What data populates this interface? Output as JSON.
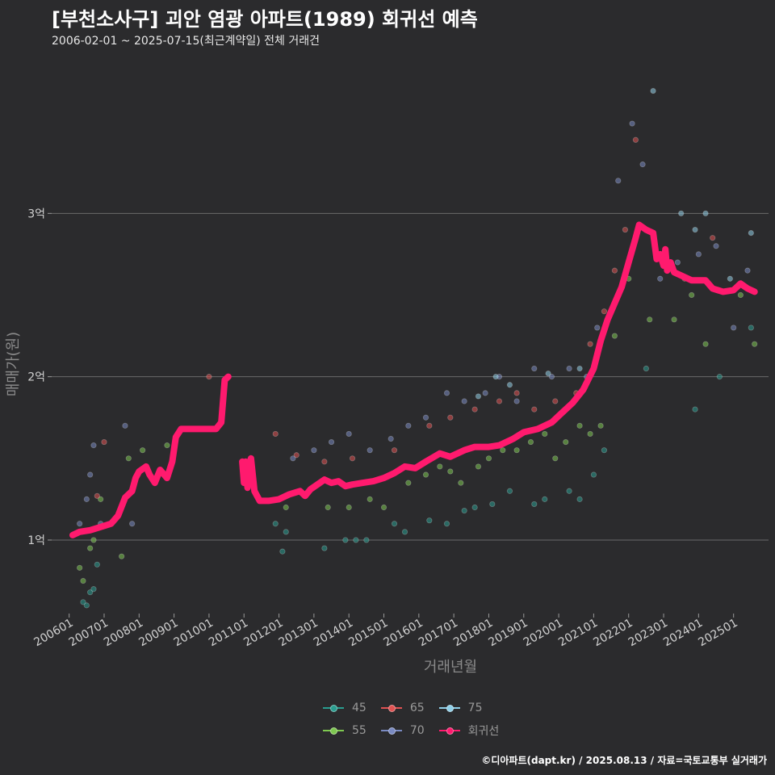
{
  "chart_data": {
    "type": "scatter",
    "title": "[부천소사구] 괴안 염광 아파트(1989) 회귀선 예측",
    "subtitle": "2006-02-01 ~ 2025-07-15(최근계약일) 전체 거래건",
    "xlabel": "거래년월",
    "ylabel": "매매가(원)",
    "x_ticks": [
      "200601",
      "200701",
      "200801",
      "200901",
      "201001",
      "201101",
      "201201",
      "201301",
      "201401",
      "201501",
      "201601",
      "201701",
      "201801",
      "201901",
      "202001",
      "202101",
      "202201",
      "202301",
      "202401",
      "202501"
    ],
    "x_range": [
      2005.5,
      2026.0
    ],
    "y_ticks": [
      {
        "value": 1,
        "label": "1억"
      },
      {
        "value": 2,
        "label": "2억"
      },
      {
        "value": 3,
        "label": "3억"
      }
    ],
    "y_range": [
      0.55,
      4.0
    ],
    "grid": true,
    "legend": "bottom-center",
    "series": [
      {
        "name": "45",
        "color": "#2a9d8f",
        "points": [
          [
            2006.4,
            0.62
          ],
          [
            2006.5,
            0.6
          ],
          [
            2006.6,
            0.68
          ],
          [
            2006.7,
            0.7
          ],
          [
            2006.8,
            0.85
          ],
          [
            2011.9,
            1.1
          ],
          [
            2012.1,
            0.93
          ],
          [
            2012.2,
            1.05
          ],
          [
            2013.3,
            0.95
          ],
          [
            2013.9,
            1.0
          ],
          [
            2014.2,
            1.0
          ],
          [
            2014.5,
            1.0
          ],
          [
            2015.3,
            1.1
          ],
          [
            2015.6,
            1.05
          ],
          [
            2016.3,
            1.12
          ],
          [
            2016.8,
            1.1
          ],
          [
            2017.3,
            1.18
          ],
          [
            2017.6,
            1.2
          ],
          [
            2018.1,
            1.22
          ],
          [
            2018.6,
            1.3
          ],
          [
            2019.3,
            1.22
          ],
          [
            2019.6,
            1.25
          ],
          [
            2020.3,
            1.3
          ],
          [
            2020.6,
            1.25
          ],
          [
            2021.0,
            1.4
          ],
          [
            2021.3,
            1.55
          ],
          [
            2022.5,
            2.05
          ],
          [
            2023.9,
            1.8
          ],
          [
            2024.6,
            2.0
          ],
          [
            2025.5,
            2.3
          ]
        ]
      },
      {
        "name": "55",
        "color": "#7ec850",
        "points": [
          [
            2006.3,
            0.83
          ],
          [
            2006.4,
            0.75
          ],
          [
            2006.6,
            0.95
          ],
          [
            2006.7,
            1.0
          ],
          [
            2006.9,
            1.25
          ],
          [
            2007.5,
            0.9
          ],
          [
            2007.7,
            1.5
          ],
          [
            2008.1,
            1.55
          ],
          [
            2008.8,
            1.58
          ],
          [
            2012.2,
            1.2
          ],
          [
            2013.4,
            1.2
          ],
          [
            2014.0,
            1.2
          ],
          [
            2014.6,
            1.25
          ],
          [
            2015.0,
            1.2
          ],
          [
            2015.7,
            1.35
          ],
          [
            2016.2,
            1.4
          ],
          [
            2016.6,
            1.45
          ],
          [
            2016.9,
            1.42
          ],
          [
            2017.2,
            1.35
          ],
          [
            2017.7,
            1.45
          ],
          [
            2018.0,
            1.5
          ],
          [
            2018.4,
            1.55
          ],
          [
            2018.8,
            1.55
          ],
          [
            2019.2,
            1.6
          ],
          [
            2019.6,
            1.65
          ],
          [
            2019.9,
            1.5
          ],
          [
            2020.2,
            1.6
          ],
          [
            2020.6,
            1.7
          ],
          [
            2020.9,
            1.65
          ],
          [
            2021.2,
            1.7
          ],
          [
            2021.6,
            2.25
          ],
          [
            2022.0,
            2.6
          ],
          [
            2022.6,
            2.35
          ],
          [
            2023.3,
            2.35
          ],
          [
            2023.8,
            2.5
          ],
          [
            2024.2,
            2.2
          ],
          [
            2025.2,
            2.5
          ],
          [
            2025.6,
            2.2
          ]
        ]
      },
      {
        "name": "65",
        "color": "#e05252",
        "points": [
          [
            2006.8,
            1.27
          ],
          [
            2007.0,
            1.6
          ],
          [
            2010.0,
            2.0
          ],
          [
            2011.9,
            1.65
          ],
          [
            2012.5,
            1.52
          ],
          [
            2013.3,
            1.48
          ],
          [
            2014.1,
            1.5
          ],
          [
            2015.3,
            1.55
          ],
          [
            2016.3,
            1.7
          ],
          [
            2016.9,
            1.75
          ],
          [
            2017.6,
            1.8
          ],
          [
            2018.3,
            1.85
          ],
          [
            2018.8,
            1.9
          ],
          [
            2019.3,
            1.8
          ],
          [
            2019.9,
            1.85
          ],
          [
            2020.5,
            1.9
          ],
          [
            2020.9,
            2.2
          ],
          [
            2021.3,
            2.4
          ],
          [
            2021.6,
            2.65
          ],
          [
            2021.9,
            2.9
          ],
          [
            2022.2,
            3.45
          ],
          [
            2023.0,
            2.75
          ],
          [
            2023.6,
            2.6
          ],
          [
            2024.4,
            2.85
          ],
          [
            2025.1,
            2.55
          ]
        ]
      },
      {
        "name": "70",
        "color": "#7a8ac2",
        "points": [
          [
            2006.3,
            1.1
          ],
          [
            2006.5,
            1.25
          ],
          [
            2006.6,
            1.4
          ],
          [
            2006.7,
            1.58
          ],
          [
            2006.9,
            1.1
          ],
          [
            2007.6,
            1.7
          ],
          [
            2007.8,
            1.1
          ],
          [
            2012.4,
            1.5
          ],
          [
            2013.0,
            1.55
          ],
          [
            2013.5,
            1.6
          ],
          [
            2014.0,
            1.65
          ],
          [
            2014.6,
            1.55
          ],
          [
            2015.2,
            1.62
          ],
          [
            2015.7,
            1.7
          ],
          [
            2016.2,
            1.75
          ],
          [
            2016.8,
            1.9
          ],
          [
            2017.3,
            1.85
          ],
          [
            2017.9,
            1.9
          ],
          [
            2018.3,
            2.0
          ],
          [
            2018.8,
            1.85
          ],
          [
            2019.3,
            2.05
          ],
          [
            2019.8,
            2.0
          ],
          [
            2020.3,
            2.05
          ],
          [
            2020.8,
            2.0
          ],
          [
            2021.1,
            2.3
          ],
          [
            2021.5,
            2.4
          ],
          [
            2021.7,
            3.2
          ],
          [
            2022.1,
            3.55
          ],
          [
            2022.4,
            3.3
          ],
          [
            2022.9,
            2.6
          ],
          [
            2023.4,
            2.7
          ],
          [
            2024.0,
            2.75
          ],
          [
            2024.5,
            2.8
          ],
          [
            2025.0,
            2.3
          ],
          [
            2025.4,
            2.65
          ]
        ]
      },
      {
        "name": "75",
        "color": "#8fcfe8",
        "points": [
          [
            2017.7,
            1.88
          ],
          [
            2018.2,
            2.0
          ],
          [
            2018.6,
            1.95
          ],
          [
            2019.7,
            2.02
          ],
          [
            2020.6,
            2.05
          ],
          [
            2022.7,
            3.75
          ],
          [
            2023.5,
            3.0
          ],
          [
            2023.9,
            2.9
          ],
          [
            2024.2,
            3.0
          ],
          [
            2024.9,
            2.6
          ],
          [
            2025.5,
            2.88
          ]
        ]
      }
    ],
    "regression": {
      "name": "회귀선",
      "color": "#ff1a6e",
      "segments": [
        [
          [
            2006.1,
            1.03
          ],
          [
            2006.3,
            1.05
          ],
          [
            2006.6,
            1.06
          ],
          [
            2006.9,
            1.08
          ],
          [
            2007.2,
            1.1
          ],
          [
            2007.4,
            1.15
          ],
          [
            2007.6,
            1.26
          ],
          [
            2007.8,
            1.3
          ],
          [
            2007.9,
            1.38
          ],
          [
            2008.0,
            1.42
          ],
          [
            2008.2,
            1.45
          ],
          [
            2008.3,
            1.4
          ],
          [
            2008.45,
            1.35
          ],
          [
            2008.6,
            1.43
          ],
          [
            2008.8,
            1.38
          ],
          [
            2008.95,
            1.48
          ],
          [
            2009.05,
            1.63
          ],
          [
            2009.2,
            1.68
          ],
          [
            2009.6,
            1.68
          ],
          [
            2010.0,
            1.68
          ],
          [
            2010.2,
            1.68
          ],
          [
            2010.35,
            1.72
          ],
          [
            2010.45,
            1.98
          ],
          [
            2010.55,
            2.0
          ]
        ],
        [
          [
            2010.95,
            1.48
          ],
          [
            2011.0,
            1.35
          ],
          [
            2011.05,
            1.48
          ],
          [
            2011.1,
            1.32
          ],
          [
            2011.15,
            1.46
          ],
          [
            2011.2,
            1.5
          ],
          [
            2011.3,
            1.3
          ],
          [
            2011.45,
            1.24
          ],
          [
            2011.7,
            1.24
          ],
          [
            2012.0,
            1.25
          ],
          [
            2012.3,
            1.28
          ],
          [
            2012.6,
            1.3
          ],
          [
            2012.75,
            1.27
          ],
          [
            2012.9,
            1.31
          ],
          [
            2013.1,
            1.34
          ],
          [
            2013.3,
            1.37
          ],
          [
            2013.5,
            1.35
          ],
          [
            2013.7,
            1.36
          ],
          [
            2013.9,
            1.33
          ],
          [
            2014.1,
            1.34
          ],
          [
            2014.4,
            1.35
          ],
          [
            2014.7,
            1.36
          ],
          [
            2015.0,
            1.38
          ],
          [
            2015.3,
            1.41
          ],
          [
            2015.6,
            1.45
          ],
          [
            2015.9,
            1.44
          ],
          [
            2016.2,
            1.48
          ],
          [
            2016.6,
            1.53
          ],
          [
            2016.9,
            1.51
          ],
          [
            2017.3,
            1.55
          ],
          [
            2017.6,
            1.57
          ],
          [
            2018.0,
            1.57
          ],
          [
            2018.3,
            1.58
          ],
          [
            2018.7,
            1.62
          ],
          [
            2019.0,
            1.66
          ],
          [
            2019.4,
            1.68
          ],
          [
            2019.8,
            1.72
          ],
          [
            2020.1,
            1.78
          ],
          [
            2020.4,
            1.84
          ],
          [
            2020.7,
            1.92
          ],
          [
            2021.0,
            2.05
          ],
          [
            2021.2,
            2.22
          ],
          [
            2021.4,
            2.35
          ],
          [
            2021.6,
            2.45
          ],
          [
            2021.8,
            2.55
          ],
          [
            2022.0,
            2.7
          ],
          [
            2022.2,
            2.85
          ],
          [
            2022.3,
            2.93
          ],
          [
            2022.5,
            2.9
          ],
          [
            2022.7,
            2.88
          ],
          [
            2022.8,
            2.72
          ],
          [
            2022.9,
            2.75
          ],
          [
            2023.0,
            2.68
          ],
          [
            2023.05,
            2.78
          ],
          [
            2023.1,
            2.65
          ],
          [
            2023.2,
            2.7
          ],
          [
            2023.3,
            2.64
          ],
          [
            2023.5,
            2.62
          ],
          [
            2023.8,
            2.59
          ],
          [
            2024.2,
            2.59
          ],
          [
            2024.4,
            2.54
          ],
          [
            2024.7,
            2.52
          ],
          [
            2025.0,
            2.53
          ],
          [
            2025.2,
            2.57
          ],
          [
            2025.4,
            2.54
          ],
          [
            2025.6,
            2.52
          ]
        ]
      ]
    }
  },
  "caption": "©디아파트(dapt.kr) / 2025.08.13 / 자료=국토교통부 실거래가"
}
